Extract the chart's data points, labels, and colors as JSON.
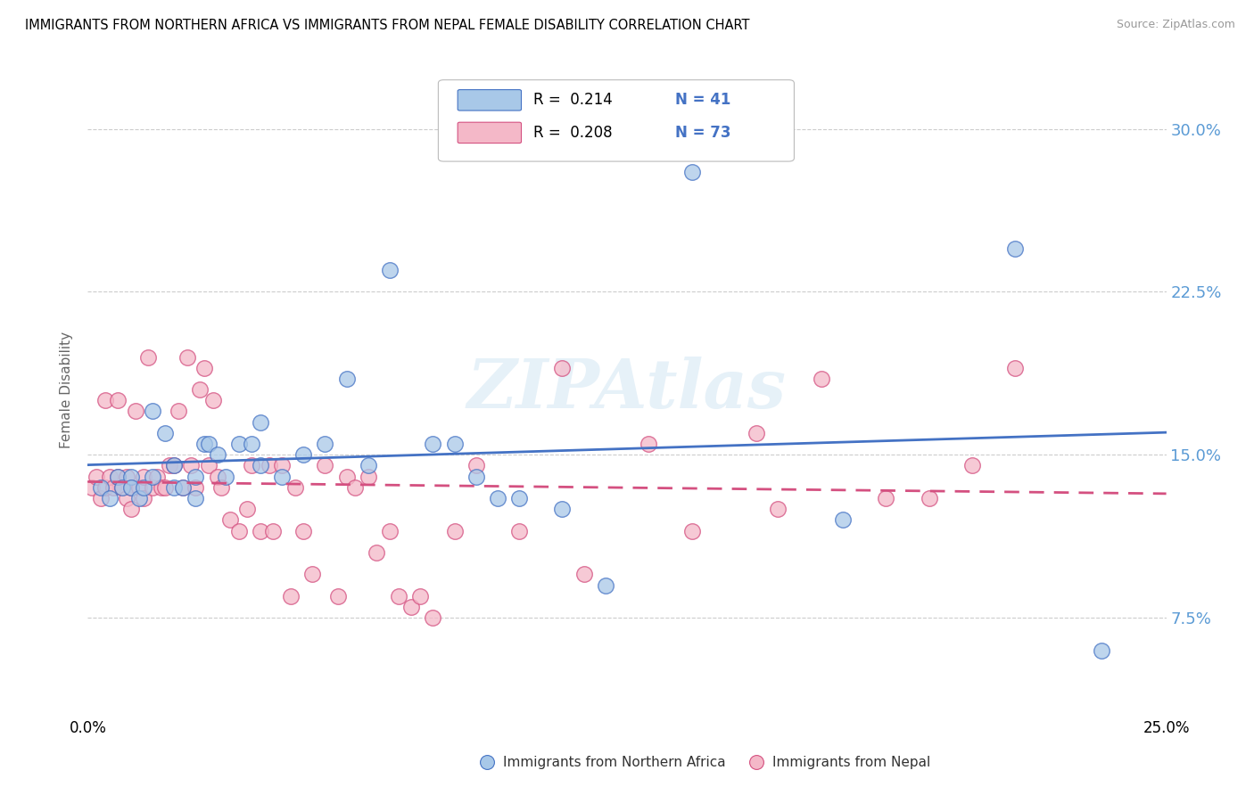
{
  "title": "IMMIGRANTS FROM NORTHERN AFRICA VS IMMIGRANTS FROM NEPAL FEMALE DISABILITY CORRELATION CHART",
  "source": "Source: ZipAtlas.com",
  "ylabel": "Female Disability",
  "xlim": [
    0.0,
    0.25
  ],
  "ylim": [
    0.03,
    0.33
  ],
  "color_blue": "#a8c8e8",
  "color_pink": "#f4b8c8",
  "line_blue": "#4472c4",
  "line_pink": "#d45080",
  "title_fontsize": 11,
  "source_fontsize": 9,
  "watermark": "ZIPAtlas",
  "blue_scatter_x": [
    0.003,
    0.005,
    0.007,
    0.008,
    0.01,
    0.01,
    0.012,
    0.013,
    0.015,
    0.015,
    0.018,
    0.02,
    0.02,
    0.022,
    0.025,
    0.025,
    0.027,
    0.028,
    0.03,
    0.032,
    0.035,
    0.038,
    0.04,
    0.04,
    0.045,
    0.05,
    0.055,
    0.06,
    0.065,
    0.07,
    0.08,
    0.085,
    0.09,
    0.095,
    0.1,
    0.11,
    0.12,
    0.14,
    0.175,
    0.215,
    0.235
  ],
  "blue_scatter_y": [
    0.135,
    0.13,
    0.14,
    0.135,
    0.14,
    0.135,
    0.13,
    0.135,
    0.14,
    0.17,
    0.16,
    0.135,
    0.145,
    0.135,
    0.14,
    0.13,
    0.155,
    0.155,
    0.15,
    0.14,
    0.155,
    0.155,
    0.145,
    0.165,
    0.14,
    0.15,
    0.155,
    0.185,
    0.145,
    0.235,
    0.155,
    0.155,
    0.14,
    0.13,
    0.13,
    0.125,
    0.09,
    0.28,
    0.12,
    0.245,
    0.06
  ],
  "pink_scatter_x": [
    0.001,
    0.002,
    0.003,
    0.004,
    0.004,
    0.005,
    0.006,
    0.007,
    0.007,
    0.008,
    0.009,
    0.009,
    0.01,
    0.01,
    0.011,
    0.012,
    0.013,
    0.013,
    0.014,
    0.015,
    0.016,
    0.017,
    0.018,
    0.019,
    0.02,
    0.021,
    0.022,
    0.023,
    0.024,
    0.025,
    0.026,
    0.027,
    0.028,
    0.029,
    0.03,
    0.031,
    0.033,
    0.035,
    0.037,
    0.038,
    0.04,
    0.042,
    0.043,
    0.045,
    0.047,
    0.048,
    0.05,
    0.052,
    0.055,
    0.058,
    0.06,
    0.062,
    0.065,
    0.067,
    0.07,
    0.072,
    0.075,
    0.077,
    0.08,
    0.085,
    0.09,
    0.1,
    0.11,
    0.115,
    0.13,
    0.14,
    0.155,
    0.16,
    0.17,
    0.185,
    0.195,
    0.205,
    0.215
  ],
  "pink_scatter_y": [
    0.135,
    0.14,
    0.13,
    0.135,
    0.175,
    0.14,
    0.135,
    0.14,
    0.175,
    0.135,
    0.13,
    0.14,
    0.135,
    0.125,
    0.17,
    0.135,
    0.13,
    0.14,
    0.195,
    0.135,
    0.14,
    0.135,
    0.135,
    0.145,
    0.145,
    0.17,
    0.135,
    0.195,
    0.145,
    0.135,
    0.18,
    0.19,
    0.145,
    0.175,
    0.14,
    0.135,
    0.12,
    0.115,
    0.125,
    0.145,
    0.115,
    0.145,
    0.115,
    0.145,
    0.085,
    0.135,
    0.115,
    0.095,
    0.145,
    0.085,
    0.14,
    0.135,
    0.14,
    0.105,
    0.115,
    0.085,
    0.08,
    0.085,
    0.075,
    0.115,
    0.145,
    0.115,
    0.19,
    0.095,
    0.155,
    0.115,
    0.16,
    0.125,
    0.185,
    0.13,
    0.13,
    0.145,
    0.19
  ],
  "ytick_vals": [
    0.075,
    0.15,
    0.225,
    0.3
  ],
  "ytick_labels": [
    "7.5%",
    "15.0%",
    "22.5%",
    "30.0%"
  ]
}
